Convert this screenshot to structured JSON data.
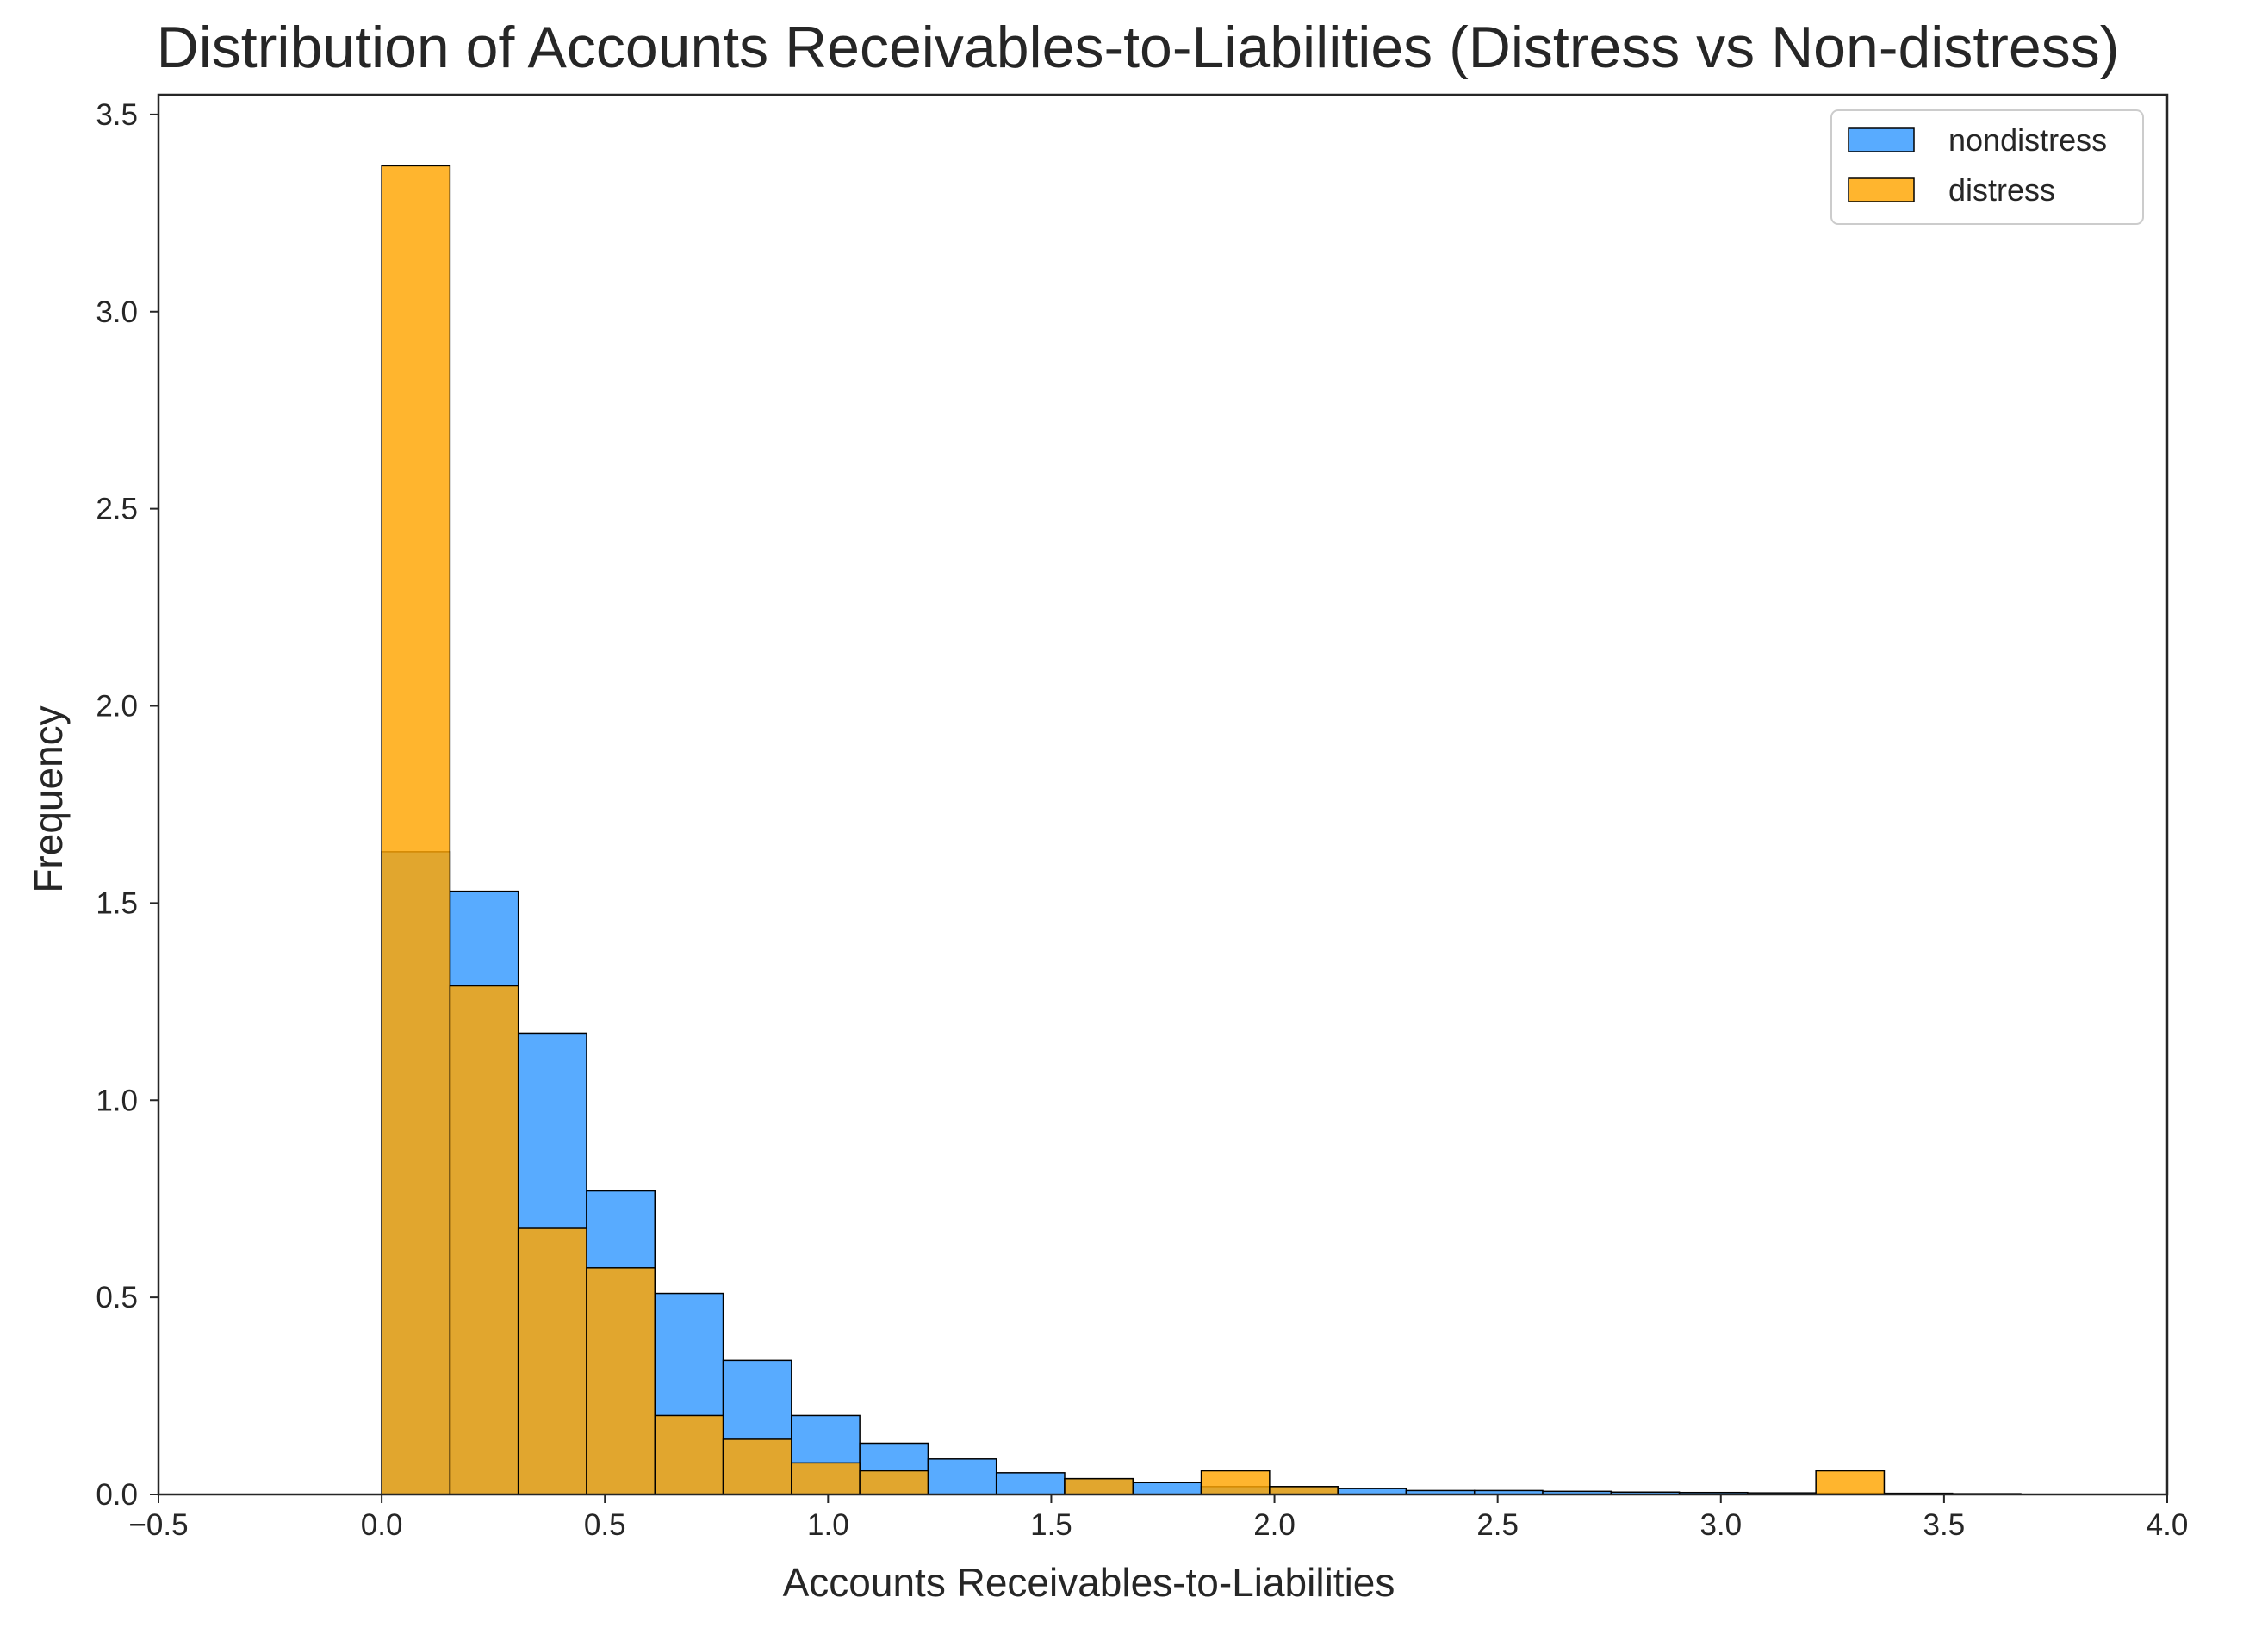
{
  "chart_data": {
    "type": "bar",
    "title": "Distribution of Accounts Receivables-to-Liabilities (Distress vs Non-distress)",
    "xlabel": "Accounts Receivables-to-Liabilities",
    "ylabel": "Frequency",
    "xlim": [
      -0.5,
      4.0
    ],
    "ylim": [
      0,
      3.55
    ],
    "xticks": [
      -0.5,
      0.0,
      0.5,
      1.0,
      1.5,
      2.0,
      2.5,
      3.0,
      3.5,
      4.0
    ],
    "xtick_labels": [
      "−0.5",
      "0.0",
      "0.5",
      "1.0",
      "1.5",
      "2.0",
      "2.5",
      "3.0",
      "3.5",
      "4.0"
    ],
    "yticks": [
      0.0,
      0.5,
      1.0,
      1.5,
      2.0,
      2.5,
      3.0,
      3.5
    ],
    "ytick_labels": [
      "0.0",
      "0.5",
      "1.0",
      "1.5",
      "2.0",
      "2.5",
      "3.0",
      "3.5"
    ],
    "grid": false,
    "legend_position": "top-right",
    "bin_edges": [
      0.0,
      0.153,
      0.306,
      0.459,
      0.612,
      0.765,
      0.918,
      1.071,
      1.224,
      1.377,
      1.53,
      1.683,
      1.836,
      1.989,
      2.142,
      2.295,
      2.448,
      2.601,
      2.754,
      2.907,
      3.06,
      3.213,
      3.366,
      3.519,
      3.672
    ],
    "series": [
      {
        "name": "nondistress",
        "color": "#3399ff",
        "values": [
          1.63,
          1.53,
          1.17,
          0.77,
          0.51,
          0.34,
          0.2,
          0.13,
          0.09,
          0.055,
          0.04,
          0.03,
          0.02,
          0.02,
          0.015,
          0.01,
          0.01,
          0.008,
          0.006,
          0.005,
          0.004,
          0.003,
          0.003,
          0.002
        ]
      },
      {
        "name": "distress",
        "color": "#ffa500",
        "values": [
          3.37,
          1.29,
          0.675,
          0.575,
          0.2,
          0.14,
          0.08,
          0.06,
          0.0,
          0.0,
          0.04,
          0.0,
          0.06,
          0.02,
          0.0,
          0.0,
          0.0,
          0.0,
          0.0,
          0.0,
          0.0,
          0.06,
          0.0,
          0.0
        ]
      }
    ]
  }
}
